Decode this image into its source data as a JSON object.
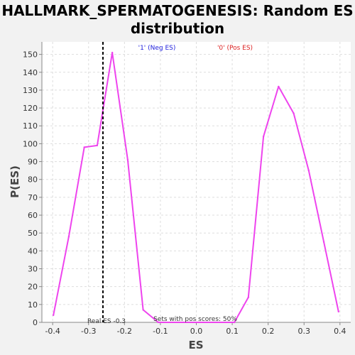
{
  "chart_data": {
    "type": "line",
    "title_line1": "HALLMARK_SPERMATOGENESIS: Random ES",
    "title_line2": "distribution",
    "xlabel": "ES",
    "ylabel": "P(ES)",
    "xlim": [
      -0.43,
      0.43
    ],
    "ylim": [
      0,
      157
    ],
    "xticks": [
      -0.4,
      -0.3,
      -0.2,
      -0.1,
      0.0,
      0.1,
      0.2,
      0.3,
      0.4
    ],
    "xtick_labels": [
      "-0.4",
      "-0.3",
      "-0.2",
      "-0.1",
      "0.0",
      "0.1",
      "0.2",
      "0.3",
      "0.4"
    ],
    "yticks": [
      0,
      10,
      20,
      30,
      40,
      50,
      60,
      70,
      80,
      90,
      100,
      110,
      120,
      130,
      140,
      150
    ],
    "grid": true,
    "series": [
      {
        "color": "#ee44ee",
        "x": [
          -0.398,
          -0.355,
          -0.312,
          -0.276,
          -0.234,
          -0.191,
          -0.148,
          -0.106,
          0.106,
          0.145,
          0.187,
          0.229,
          0.271,
          0.313,
          0.355,
          0.396
        ],
        "y": [
          4,
          48,
          98,
          99,
          151,
          91,
          7,
          0,
          0,
          14,
          104,
          132,
          117,
          85,
          45,
          6
        ]
      }
    ],
    "real_es": -0.26,
    "annotations": {
      "neg_label": "'1' (Neg ES)",
      "neg_color": "#2222dd",
      "pos_label": "'0' (Pos ES)",
      "pos_color": "#dd2222",
      "real_es_label": "Real ES -0.3",
      "pos_scores_label": "Sets with pos scores: 50%"
    }
  }
}
